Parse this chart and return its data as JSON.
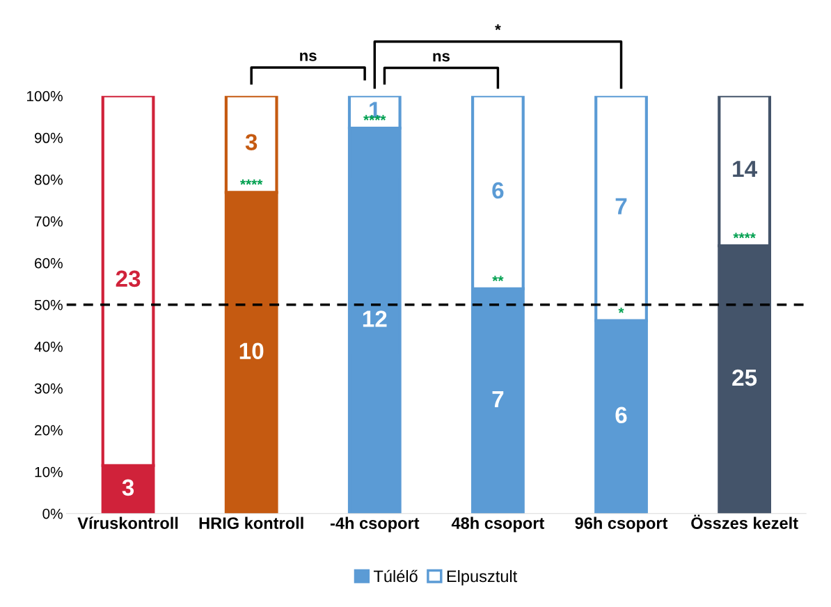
{
  "chart_data": {
    "type": "bar",
    "stacked": true,
    "categories": [
      "Víruskontroll",
      "HRIG kontroll",
      "-4h csoport",
      "48h csoport",
      "96h csoport",
      "Összes kezelt"
    ],
    "series": [
      {
        "name": "Túlélő",
        "color": "#5b9bd5",
        "colors": [
          "#d0223a",
          "#c55a11",
          "#5b9bd5",
          "#5b9bd5",
          "#5b9bd5",
          "#44546a"
        ],
        "values": [
          11.5,
          76.9,
          92.3,
          53.8,
          46.2,
          64.1
        ]
      },
      {
        "name": "Elpusztult",
        "color": "#ffffff",
        "colors": [
          "#ffffff",
          "#ffffff",
          "#ffffff",
          "#ffffff",
          "#ffffff",
          "#ffffff"
        ],
        "values": [
          88.5,
          23.1,
          7.7,
          46.2,
          53.8,
          35.9
        ]
      }
    ],
    "ylim": [
      0,
      100
    ],
    "yticks": [
      {
        "value": 0,
        "label": "0%"
      },
      {
        "value": 10,
        "label": "10%"
      },
      {
        "value": 20,
        "label": "20%"
      },
      {
        "value": 30,
        "label": "30%"
      },
      {
        "value": 40,
        "label": "40%"
      },
      {
        "value": 50,
        "label": "50%"
      },
      {
        "value": 60,
        "label": "60%"
      },
      {
        "value": 70,
        "label": "70%"
      },
      {
        "value": 80,
        "label": "80%"
      },
      {
        "value": 90,
        "label": "90%"
      },
      {
        "value": 100,
        "label": "100%"
      }
    ],
    "ref_lines": [
      {
        "axis": "y",
        "value": 50,
        "color": "#000000",
        "line_style": "dashed"
      }
    ],
    "annotations": [
      "3",
      "10",
      "12",
      "7",
      "6",
      "25",
      "23",
      "3",
      "1",
      "6",
      "7",
      "14",
      {
        "text": "****",
        "x": "HRIG kontroll",
        "y": 76.9
      },
      {
        "text": "****",
        "x": "-4h csoport",
        "y": 92.3
      },
      {
        "text": "**",
        "x": "48h csoport",
        "y": 53.8
      },
      {
        "text": "*",
        "x": "96h csoport",
        "y": 46.2
      },
      {
        "text": "****",
        "x": "Összes kezelt",
        "y": 64.1
      },
      "ns",
      "ns",
      "*"
    ],
    "grid": false,
    "legend": "bottom"
  }
}
